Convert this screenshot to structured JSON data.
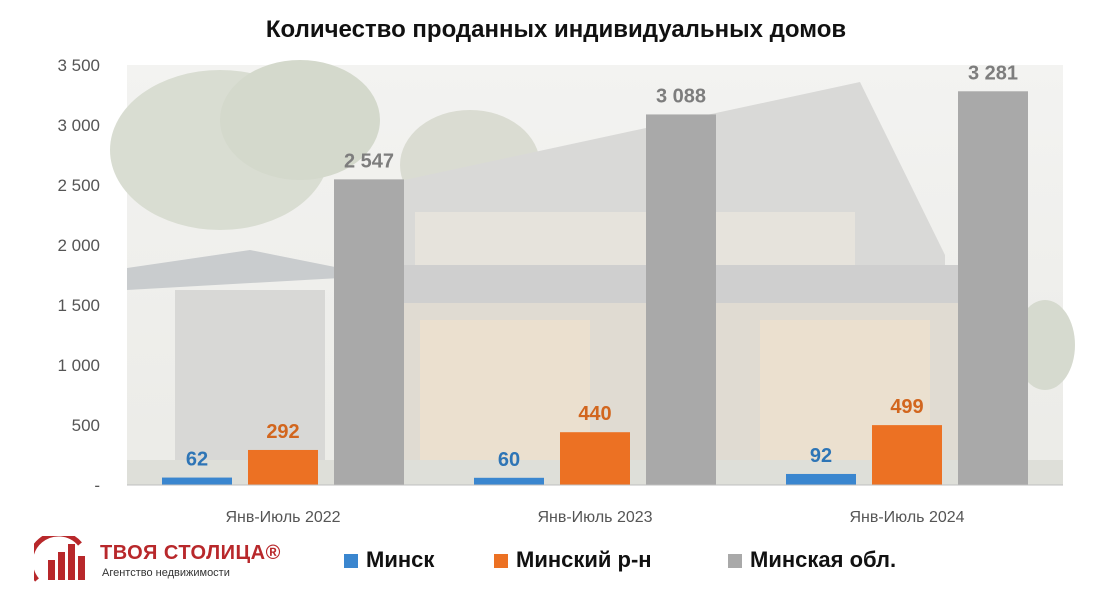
{
  "chart_data": {
    "type": "bar",
    "title": "Количество проданных индивидуальных домов",
    "categories": [
      "Янв-Июль 2022",
      "Янв-Июль 2023",
      "Янв-Июль 2024"
    ],
    "series": [
      {
        "name": "Минск",
        "color": "#3a86cf",
        "label_color": "#2e75b6",
        "values": [
          62,
          60,
          92
        ]
      },
      {
        "name": "Минский р-н",
        "color": "#ec7123",
        "label_color": "#d2661e",
        "values": [
          292,
          440,
          499
        ]
      },
      {
        "name": "Минская обл.",
        "color": "#a9a9a9",
        "label_color": "#7d7d7d",
        "values": [
          2547,
          3088,
          3281
        ]
      }
    ],
    "data_labels": [
      [
        "62",
        "60",
        "92"
      ],
      [
        "292",
        "440",
        "499"
      ],
      [
        "2 547",
        "3 088",
        "3 281"
      ]
    ],
    "ylim": [
      0,
      3500
    ],
    "yticks": [
      {
        "value": 0,
        "label": "-"
      },
      {
        "value": 500,
        "label": "500"
      },
      {
        "value": 1000,
        "label": "1 000"
      },
      {
        "value": 1500,
        "label": "1 500"
      },
      {
        "value": 2000,
        "label": "2 000"
      },
      {
        "value": 2500,
        "label": "2 500"
      },
      {
        "value": 3000,
        "label": "3 000"
      },
      {
        "value": 3500,
        "label": "3 500"
      }
    ],
    "xlabel": "",
    "ylabel": "",
    "grid": false,
    "legend_position": "bottom"
  },
  "logo": {
    "name": "ТВОЯ СТОЛИЦА®",
    "subtitle": "Агентство недвижимости",
    "color": "#b8282b"
  }
}
